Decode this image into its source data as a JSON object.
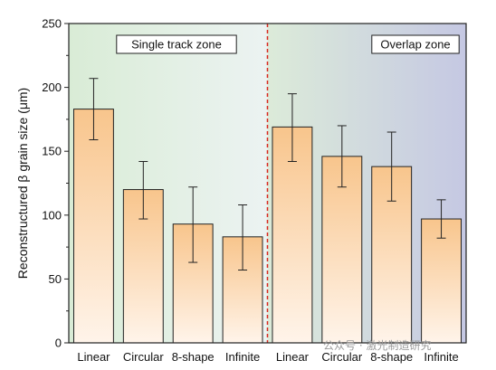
{
  "chart_data": {
    "type": "bar",
    "title": "",
    "xlabel": "",
    "ylabel": "Reconstructured β grain size (μm)",
    "ylim": [
      0,
      250
    ],
    "yticks": [
      0,
      50,
      100,
      150,
      200,
      250
    ],
    "grid": false,
    "categories": [
      "Linear",
      "Circular",
      "8-shape",
      "Infinite",
      "Linear",
      "Circular",
      "8-shape",
      "Infinite"
    ],
    "values": [
      183,
      120,
      93,
      83,
      169,
      146,
      138,
      97
    ],
    "error_upper": [
      207,
      142,
      122,
      108,
      195,
      170,
      165,
      112
    ],
    "error_lower": [
      159,
      97,
      63,
      57,
      142,
      122,
      111,
      82
    ],
    "zones": [
      {
        "label": "Single track zone",
        "categories": [
          0,
          1,
          2,
          3
        ],
        "background_start": "#d9ecd6",
        "background_end": "#ecf3f2"
      },
      {
        "label": "Overlap zone",
        "categories": [
          4,
          5,
          6,
          7
        ],
        "background_start": "#dcebd9",
        "background_end": "#c5c8e3"
      }
    ],
    "divider": {
      "between_categories": [
        3,
        4
      ],
      "color": "#d9271e",
      "style": "dashed"
    },
    "bar_gradient": {
      "top": "#f8c58c",
      "bottom": "#fff4ea"
    }
  },
  "watermark": {
    "text": "公众号 · 激光制造研究"
  }
}
